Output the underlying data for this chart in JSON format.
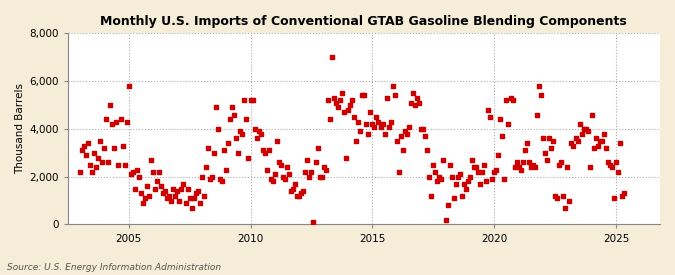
{
  "title": "Monthly U.S. Imports of Conventional GTAB Gasoline Blending Components",
  "ylabel": "Thousand Barrels",
  "source": "Source: U.S. Energy Information Administration",
  "figure_bg_color": "#F5EDD8",
  "plot_bg_color": "#FFFFFF",
  "marker_color": "#CC0000",
  "ylim": [
    0,
    8000
  ],
  "yticks": [
    0,
    2000,
    4000,
    6000,
    8000
  ],
  "xlim_start": 2002.5,
  "xlim_end": 2026.8,
  "xticks": [
    2005,
    2010,
    2015,
    2020,
    2025
  ],
  "data_start_year": 2003,
  "monthly_data": [
    2200,
    3100,
    3300,
    2900,
    3400,
    2500,
    2200,
    3000,
    2400,
    2800,
    3500,
    2600,
    3200,
    4400,
    2600,
    5000,
    4200,
    3200,
    4300,
    2500,
    4400,
    3300,
    2500,
    4300,
    5800,
    2100,
    2200,
    1500,
    2300,
    2000,
    1300,
    900,
    1100,
    1600,
    1200,
    2700,
    2200,
    1500,
    1800,
    2200,
    1600,
    1300,
    1400,
    1100,
    1200,
    1000,
    1500,
    1200,
    1400,
    1000,
    1500,
    1700,
    900,
    1500,
    1100,
    700,
    1100,
    1300,
    1400,
    900,
    2000,
    1200,
    2400,
    3200,
    1900,
    2000,
    3000,
    4900,
    4000,
    1900,
    1800,
    3100,
    2300,
    3400,
    4400,
    4900,
    4600,
    3600,
    3000,
    3900,
    3800,
    5200,
    4400,
    2800,
    5200,
    5200,
    4000,
    3600,
    3900,
    3800,
    3100,
    3000,
    2300,
    3100,
    1900,
    1800,
    2100,
    3500,
    2600,
    2500,
    2000,
    1900,
    2400,
    2100,
    1400,
    1500,
    1700,
    1200,
    1200,
    1300,
    1400,
    2200,
    2700,
    2000,
    2200,
    100,
    2600,
    3200,
    2000,
    2000,
    2400,
    2300,
    5200,
    4400,
    7000,
    5300,
    5100,
    4900,
    5200,
    5500,
    4700,
    2800,
    4800,
    5000,
    5200,
    4500,
    3500,
    4300,
    3900,
    5400,
    5400,
    4200,
    3800,
    4700,
    4200,
    4100,
    4500,
    4300,
    4100,
    4200,
    3800,
    5300,
    4100,
    4300,
    5800,
    5400,
    3500,
    2200,
    3700,
    3100,
    3900,
    3800,
    4100,
    5100,
    5500,
    5000,
    5300,
    5100,
    4000,
    4000,
    3700,
    3100,
    2000,
    1200,
    2500,
    2200,
    1800,
    2000,
    1900,
    2700,
    200,
    800,
    2500,
    2000,
    1100,
    1700,
    2000,
    2100,
    1200,
    1700,
    1500,
    1800,
    2000,
    2700,
    2400,
    2400,
    2200,
    1700,
    2200,
    2500,
    1800,
    4800,
    4500,
    1900,
    2200,
    2300,
    2900,
    4400,
    3700,
    1900,
    5200,
    4200,
    5300,
    5200,
    2400,
    2600,
    2400,
    2300,
    2600,
    3100,
    3400,
    2600,
    2400,
    2500,
    2400,
    4600,
    5800,
    5400,
    3600,
    3000,
    2700,
    3600,
    3200,
    3500,
    1200,
    1100,
    2500,
    2600,
    1200,
    700,
    2400,
    1000,
    3400,
    3300,
    3600,
    3500,
    4200,
    3800,
    4000,
    4000,
    3900,
    2400,
    4600,
    3200,
    3600,
    3300,
    3500,
    3500,
    3800,
    3200,
    2600,
    2500,
    2400,
    1100,
    2600,
    2200,
    3400,
    1200,
    1300
  ]
}
